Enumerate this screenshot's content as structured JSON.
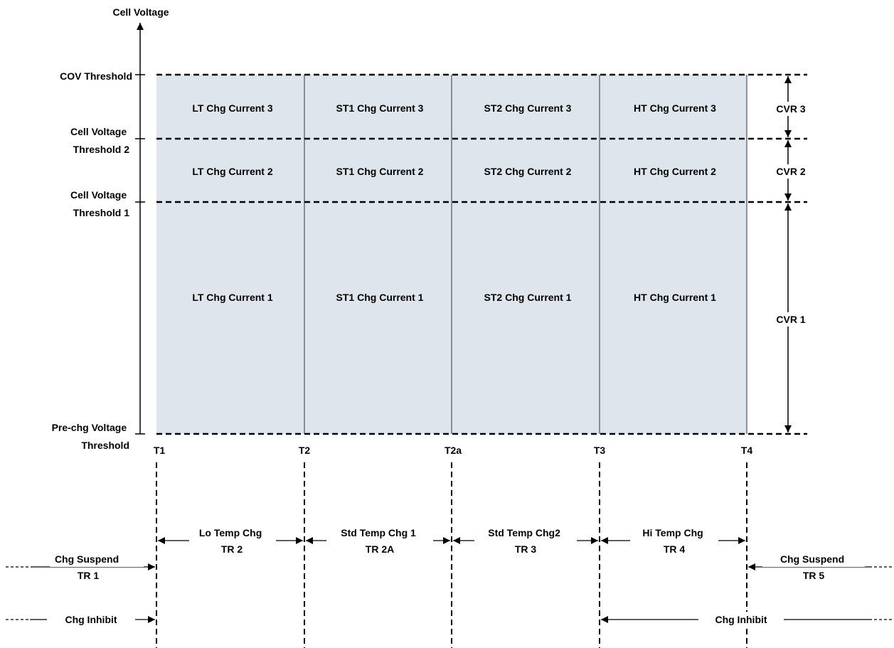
{
  "axis": {
    "y_label": "Cell Voltage",
    "levels": [
      [
        "COV Threshold"
      ],
      [
        "Cell Voltage",
        "Threshold  2"
      ],
      [
        "Cell Voltage",
        "Threshold  1"
      ],
      [
        "Pre-chg Voltage",
        "Threshold"
      ]
    ]
  },
  "temps": [
    "T1",
    "T2",
    "T2a",
    "T3",
    "T4"
  ],
  "grid": {
    "rows": [
      [
        "LT Chg Current 3",
        "ST1 Chg Current 3",
        "ST2 Chg Current 3",
        "HT Chg Current 3"
      ],
      [
        "LT Chg Current 2",
        "ST1 Chg Current 2",
        "ST2 Chg Current 2",
        "HT Chg Current 2"
      ],
      [
        "LT Chg Current 1",
        "ST1 Chg Current 1",
        "ST2 Chg Current 1",
        "HT Chg Current 1"
      ]
    ],
    "fill_color": "#dfe5ec"
  },
  "cvr": [
    "CVR 3",
    "CVR 2",
    "CVR 1"
  ],
  "ranges": [
    [
      "Lo Temp Chg",
      "TR 2"
    ],
    [
      "Std Temp Chg 1",
      "TR 2A"
    ],
    [
      "Std Temp Chg2",
      "TR 3"
    ],
    [
      "Hi Temp Chg",
      "TR 4"
    ]
  ],
  "suspend_left": [
    "Chg Suspend",
    "TR 1"
  ],
  "suspend_right": [
    "Chg Suspend",
    "TR 5"
  ],
  "inhibit_left": "Chg Inhibit",
  "inhibit_right": "Chg Inhibit"
}
